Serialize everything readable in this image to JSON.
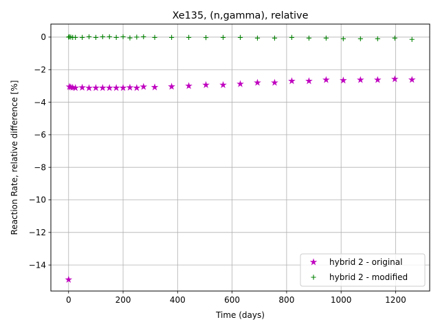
{
  "chart_data": {
    "type": "scatter",
    "title": "Xe135, (n,gamma), relative",
    "xlabel": "Time (days)",
    "ylabel": "Reaction Rate, relative difference [%]",
    "xlim": [
      -65,
      1325
    ],
    "ylim": [
      -15.6,
      0.8
    ],
    "xticks": [
      0,
      200,
      400,
      600,
      800,
      1000,
      1200
    ],
    "xtick_labels": [
      "0",
      "200",
      "400",
      "600",
      "800",
      "1000",
      "1200"
    ],
    "yticks": [
      0,
      -2,
      -4,
      -6,
      -8,
      -10,
      -12,
      -14
    ],
    "ytick_labels": [
      "0",
      "−2",
      "−4",
      "−6",
      "−8",
      "−10",
      "−12",
      "−14"
    ],
    "grid": true,
    "legend_position": "lower-right",
    "series": [
      {
        "name": "hybrid 2 - original",
        "marker": "star",
        "color": "#bf00bf",
        "points": [
          [
            0,
            -14.9
          ],
          [
            3,
            -3.05
          ],
          [
            8,
            -3.08
          ],
          [
            15,
            -3.1
          ],
          [
            25,
            -3.12
          ],
          [
            50,
            -3.1
          ],
          [
            75,
            -3.13
          ],
          [
            100,
            -3.12
          ],
          [
            125,
            -3.12
          ],
          [
            150,
            -3.12
          ],
          [
            175,
            -3.12
          ],
          [
            200,
            -3.12
          ],
          [
            225,
            -3.1
          ],
          [
            250,
            -3.12
          ],
          [
            275,
            -3.05
          ],
          [
            316,
            -3.08
          ],
          [
            378,
            -3.04
          ],
          [
            441,
            -3.0
          ],
          [
            504,
            -2.94
          ],
          [
            567,
            -2.94
          ],
          [
            630,
            -2.88
          ],
          [
            693,
            -2.8
          ],
          [
            756,
            -2.8
          ],
          [
            819,
            -2.7
          ],
          [
            882,
            -2.7
          ],
          [
            945,
            -2.63
          ],
          [
            1008,
            -2.66
          ],
          [
            1071,
            -2.63
          ],
          [
            1134,
            -2.63
          ],
          [
            1197,
            -2.58
          ],
          [
            1260,
            -2.62
          ]
        ]
      },
      {
        "name": "hybrid 2 - modified",
        "marker": "plus",
        "color": "#008000",
        "points": [
          [
            0,
            0.0
          ],
          [
            3,
            0.02
          ],
          [
            8,
            0.0
          ],
          [
            15,
            -0.02
          ],
          [
            25,
            -0.02
          ],
          [
            50,
            -0.02
          ],
          [
            75,
            0.02
          ],
          [
            100,
            -0.02
          ],
          [
            125,
            0.02
          ],
          [
            150,
            0.02
          ],
          [
            175,
            -0.02
          ],
          [
            200,
            0.02
          ],
          [
            225,
            -0.05
          ],
          [
            250,
            0.0
          ],
          [
            275,
            0.02
          ],
          [
            316,
            -0.02
          ],
          [
            378,
            -0.02
          ],
          [
            441,
            -0.02
          ],
          [
            504,
            -0.03
          ],
          [
            567,
            -0.02
          ],
          [
            630,
            -0.02
          ],
          [
            693,
            -0.06
          ],
          [
            756,
            -0.06
          ],
          [
            819,
            -0.02
          ],
          [
            882,
            -0.06
          ],
          [
            945,
            -0.06
          ],
          [
            1008,
            -0.1
          ],
          [
            1071,
            -0.1
          ],
          [
            1134,
            -0.1
          ],
          [
            1197,
            -0.06
          ],
          [
            1260,
            -0.14
          ]
        ]
      }
    ]
  }
}
